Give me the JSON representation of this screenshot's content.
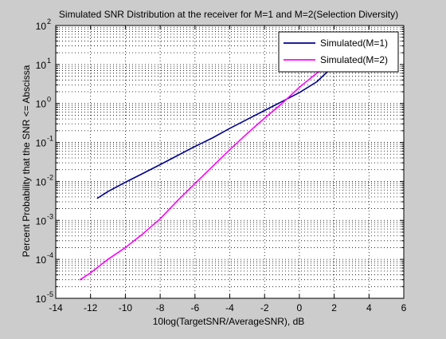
{
  "chart_data": {
    "type": "line",
    "title": "Simulated SNR Distribution at the receiver for M=1 and M=2(Selection Diversity)",
    "xlabel": "10log(TargetSNR/AverageSNR), dB",
    "ylabel": "Percent Probability that the SNR <= Abscissa",
    "xlim": [
      -14,
      6
    ],
    "ylim": [
      1e-05,
      100
    ],
    "yscale": "log",
    "grid": true,
    "legend_position": "top-right",
    "x_ticks": [
      "-14",
      "-12",
      "-10",
      "-8",
      "-6",
      "-4",
      "-2",
      "0",
      "2",
      "4",
      "6"
    ],
    "y_ticks": [
      {
        "mantissa": "10",
        "exponent": "-5"
      },
      {
        "mantissa": "10",
        "exponent": "-4"
      },
      {
        "mantissa": "10",
        "exponent": "-3"
      },
      {
        "mantissa": "10",
        "exponent": "-2"
      },
      {
        "mantissa": "10",
        "exponent": "-1"
      },
      {
        "mantissa": "10",
        "exponent": "0"
      },
      {
        "mantissa": "10",
        "exponent": "1"
      },
      {
        "mantissa": "10",
        "exponent": "2"
      }
    ],
    "series": [
      {
        "name": "Simulated(M=1)",
        "color": "#00008b",
        "x": [
          -11.6,
          -11,
          -10,
          -9,
          -8,
          -7,
          -6,
          -5,
          -4,
          -3,
          -2,
          -1,
          0,
          1,
          2
        ],
        "y": [
          0.0037,
          0.0055,
          0.0095,
          0.016,
          0.027,
          0.046,
          0.079,
          0.13,
          0.23,
          0.39,
          0.66,
          1.12,
          1.9,
          3.6,
          9.5
        ]
      },
      {
        "name": "Simulated(M=2)",
        "color": "#ff00ff",
        "x": [
          -12.6,
          -12,
          -11,
          -10,
          -9,
          -8,
          -7,
          -6,
          -5,
          -4,
          -3,
          -2,
          -1,
          0,
          1,
          2
        ],
        "y": [
          3e-05,
          4.5e-05,
          0.0001,
          0.0002,
          0.00045,
          0.0011,
          0.0032,
          0.0088,
          0.024,
          0.065,
          0.17,
          0.42,
          1.0,
          2.6,
          6.0,
          11
        ]
      }
    ]
  }
}
